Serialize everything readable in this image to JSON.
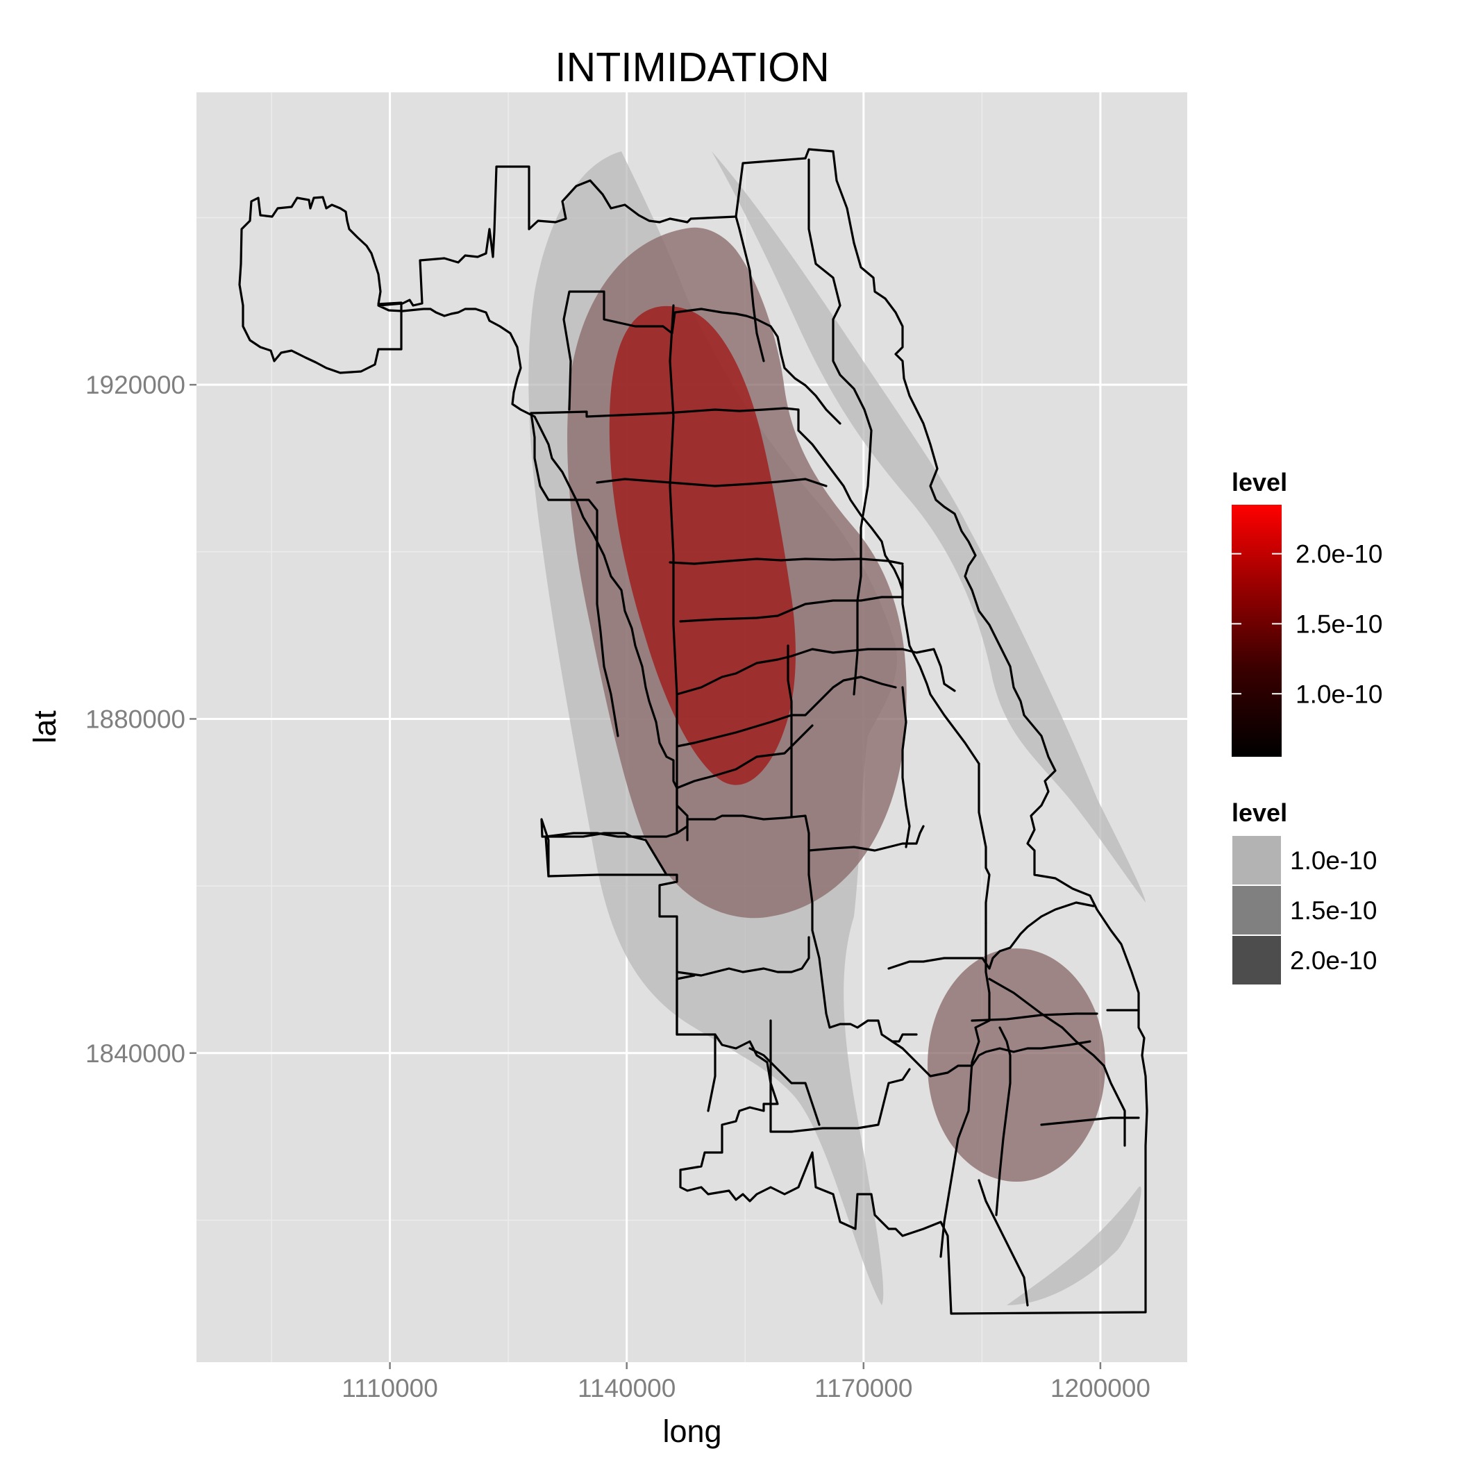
{
  "title": "INTIMIDATION",
  "chart_data": {
    "type": "density-contour-map",
    "title": "INTIMIDATION",
    "xlabel": "long",
    "ylabel": "lat",
    "x_ticks": [
      "1110000",
      "1140000",
      "1170000",
      "1200000"
    ],
    "y_ticks": [
      "1920000",
      "1880000",
      "1840000"
    ],
    "xlim": [
      1085500,
      1211000
    ],
    "ylim": [
      1803000,
      1955000
    ],
    "grid": true,
    "legend_position": "right",
    "legends": [
      {
        "title": "level",
        "kind": "fill-colorbar",
        "range": [
          5.5e-11,
          2.35e-10
        ],
        "labels": [
          "2.0e-10",
          "1.5e-10",
          "1.0e-10"
        ],
        "colors": [
          "#000000",
          "#ff0000"
        ]
      },
      {
        "title": "level",
        "kind": "alpha-keys",
        "labels": [
          "1.0e-10",
          "1.5e-10",
          "2.0e-10"
        ],
        "colors": [
          "#b3b3b3",
          "#808080",
          "#4d4d4d"
        ]
      }
    ],
    "colors": {
      "panel": "#e0e0e0",
      "grid_major": "#ffffff",
      "grid_minor": "#ececec",
      "level_low": "#7d1a1a",
      "level_high": "#a80000",
      "outer_contour": "#b6b6b6"
    }
  }
}
